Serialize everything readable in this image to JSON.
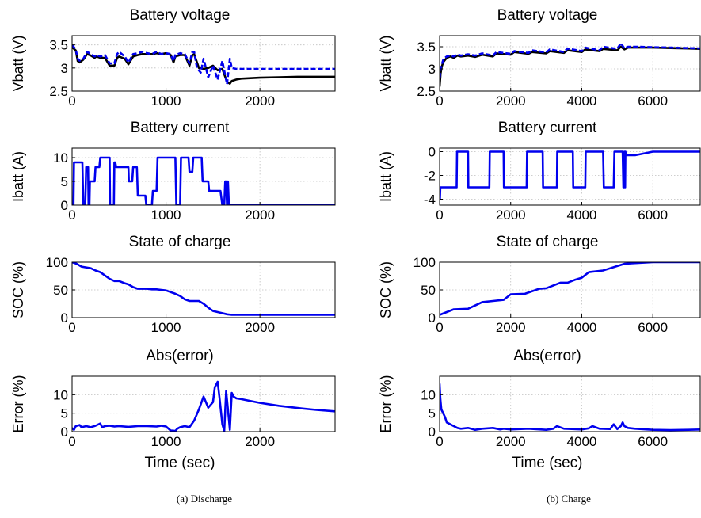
{
  "captions": {
    "left": "(a) Discharge",
    "right": "(b) Charge"
  },
  "chart_data": [
    {
      "id": "dis-voltage",
      "type": "line",
      "title": "Battery voltage",
      "xlabel": "",
      "ylabel": "Vbatt (V)",
      "xlim": [
        0,
        2800
      ],
      "ylim": [
        2.5,
        3.7
      ],
      "xticks": [
        0,
        1000,
        2000
      ],
      "yticks": [
        2.5,
        3,
        3.5
      ],
      "grid": true,
      "series": [
        {
          "color": "#000000",
          "dash": false,
          "x": [
            0,
            40,
            60,
            80,
            120,
            160,
            200,
            240,
            260,
            300,
            350,
            400,
            450,
            480,
            500,
            560,
            600,
            650,
            700,
            750,
            800,
            850,
            900,
            950,
            1000,
            1050,
            1080,
            1100,
            1150,
            1200,
            1250,
            1280,
            1300,
            1350,
            1400,
            1450,
            1500,
            1550,
            1600,
            1650,
            1680,
            1700,
            1750,
            1800,
            2000,
            2200,
            2400,
            2600,
            2800
          ],
          "y": [
            3.45,
            3.38,
            3.15,
            3.12,
            3.18,
            3.3,
            3.27,
            3.22,
            3.25,
            3.22,
            3.22,
            3.05,
            3.05,
            3.22,
            3.25,
            3.2,
            3.08,
            3.25,
            3.28,
            3.3,
            3.3,
            3.3,
            3.32,
            3.3,
            3.32,
            3.28,
            3.12,
            3.25,
            3.28,
            3.28,
            3.05,
            3.28,
            3.3,
            3.0,
            2.98,
            3.0,
            3.05,
            2.95,
            2.98,
            2.7,
            2.66,
            2.72,
            2.75,
            2.77,
            2.79,
            2.8,
            2.81,
            2.81,
            2.81
          ]
        },
        {
          "color": "#0000ee",
          "dash": true,
          "x": [
            0,
            40,
            60,
            80,
            120,
            160,
            200,
            240,
            260,
            300,
            350,
            400,
            450,
            480,
            500,
            560,
            600,
            650,
            700,
            750,
            800,
            850,
            900,
            950,
            1000,
            1050,
            1080,
            1100,
            1150,
            1200,
            1250,
            1280,
            1300,
            1330,
            1370,
            1400,
            1450,
            1500,
            1550,
            1600,
            1650,
            1680,
            1700,
            1750,
            1800,
            2000,
            2200,
            2400,
            2600,
            2800
          ],
          "y": [
            3.5,
            3.4,
            3.2,
            3.16,
            3.2,
            3.35,
            3.3,
            3.25,
            3.28,
            3.25,
            3.28,
            3.1,
            3.1,
            3.3,
            3.35,
            3.25,
            3.12,
            3.3,
            3.32,
            3.35,
            3.32,
            3.3,
            3.35,
            3.3,
            3.32,
            3.3,
            3.15,
            3.28,
            3.32,
            3.3,
            3.1,
            3.35,
            3.35,
            3.0,
            2.9,
            3.2,
            2.8,
            3.05,
            2.75,
            3.15,
            2.65,
            3.2,
            3.0,
            2.98,
            2.98,
            2.98,
            2.98,
            2.98,
            2.98,
            2.98
          ]
        }
      ]
    },
    {
      "id": "dis-current",
      "type": "line",
      "title": "Battery current",
      "xlabel": "",
      "ylabel": "Ibatt (A)",
      "xlim": [
        0,
        2800
      ],
      "ylim": [
        0,
        12
      ],
      "xticks": [
        0,
        1000,
        2000
      ],
      "yticks": [
        0,
        5,
        10
      ],
      "grid": true,
      "series": [
        {
          "color": "#0000ee",
          "dash": false,
          "x": [
            0,
            15,
            20,
            110,
            120,
            140,
            150,
            170,
            175,
            185,
            190,
            240,
            250,
            290,
            300,
            310,
            320,
            400,
            405,
            445,
            450,
            460,
            470,
            600,
            605,
            640,
            650,
            690,
            700,
            780,
            790,
            850,
            860,
            900,
            910,
            960,
            970,
            1100,
            1110,
            1150,
            1160,
            1240,
            1250,
            1280,
            1290,
            1380,
            1390,
            1450,
            1460,
            1580,
            1600,
            1620,
            1630,
            1640,
            1650,
            1660,
            1670,
            1700,
            1800,
            2800
          ],
          "y": [
            0,
            0,
            9,
            9,
            0,
            0,
            8,
            8,
            0,
            0,
            5,
            5,
            8,
            8,
            10,
            10,
            10,
            10,
            0,
            0,
            9,
            9,
            8,
            8,
            5,
            5,
            8,
            8,
            2,
            2,
            0,
            0,
            3,
            3,
            10,
            10,
            10,
            10,
            0,
            0,
            10,
            10,
            7,
            7,
            10,
            10,
            5,
            5,
            3,
            3,
            0,
            0,
            5,
            5,
            0,
            5,
            0,
            0,
            0,
            0
          ]
        }
      ]
    },
    {
      "id": "dis-soc",
      "type": "line",
      "title": "State of charge",
      "xlabel": "",
      "ylabel": "SOC (%)",
      "xlim": [
        0,
        2800
      ],
      "ylim": [
        0,
        100
      ],
      "xticks": [
        0,
        1000,
        2000
      ],
      "yticks": [
        0,
        50,
        100
      ],
      "grid": true,
      "series": [
        {
          "color": "#0000ee",
          "dash": false,
          "x": [
            0,
            50,
            100,
            200,
            250,
            300,
            350,
            400,
            450,
            500,
            560,
            600,
            650,
            700,
            750,
            800,
            850,
            900,
            950,
            1000,
            1050,
            1100,
            1150,
            1200,
            1250,
            1300,
            1350,
            1400,
            1450,
            1500,
            1550,
            1600,
            1650,
            1700,
            2000,
            2400,
            2800
          ],
          "y": [
            100,
            97,
            92,
            89,
            85,
            82,
            76,
            70,
            66,
            66,
            62,
            60,
            55,
            52,
            52,
            52,
            51,
            51,
            50,
            49,
            46,
            43,
            39,
            33,
            30,
            30,
            30,
            25,
            18,
            12,
            10,
            8,
            6,
            5,
            5,
            5,
            5
          ]
        }
      ]
    },
    {
      "id": "dis-error",
      "type": "line",
      "title": "Abs(error)",
      "xlabel": "Time (sec)",
      "ylabel": "Error (%)",
      "xlim": [
        0,
        2800
      ],
      "ylim": [
        0,
        15
      ],
      "xticks": [
        0,
        1000,
        2000
      ],
      "yticks": [
        0,
        5,
        10
      ],
      "grid": true,
      "series": [
        {
          "color": "#0000ee",
          "dash": false,
          "x": [
            0,
            20,
            40,
            80,
            100,
            150,
            200,
            250,
            300,
            320,
            350,
            400,
            450,
            500,
            600,
            700,
            800,
            900,
            950,
            1000,
            1050,
            1100,
            1120,
            1150,
            1200,
            1250,
            1300,
            1350,
            1400,
            1450,
            1500,
            1520,
            1550,
            1570,
            1600,
            1620,
            1640,
            1660,
            1680,
            1700,
            1720,
            1750,
            1800,
            2000,
            2200,
            2400,
            2600,
            2800
          ],
          "y": [
            1,
            0.5,
            1.5,
            1.8,
            1.2,
            1.5,
            1.2,
            1.6,
            2.2,
            1.2,
            1.5,
            1.6,
            1.4,
            1.5,
            1.3,
            1.5,
            1.5,
            1.4,
            1.6,
            1.4,
            0.3,
            0.2,
            0.8,
            1.2,
            1.5,
            1.2,
            3,
            6,
            9.5,
            6.5,
            8,
            12,
            13.5,
            9,
            2,
            0.2,
            11,
            6,
            0.5,
            10.5,
            9.5,
            9,
            8.8,
            7.8,
            7,
            6.4,
            5.9,
            5.5
          ]
        }
      ]
    },
    {
      "id": "chg-voltage",
      "type": "line",
      "title": "Battery voltage",
      "xlabel": "",
      "ylabel": "Vbatt (V)",
      "xlim": [
        0,
        7400
      ],
      "ylim": [
        2.5,
        3.75
      ],
      "xticks": [
        0,
        2000,
        4000,
        6000
      ],
      "yticks": [
        2.5,
        3,
        3.5
      ],
      "grid": true,
      "series": [
        {
          "color": "#000000",
          "dash": false,
          "x": [
            0,
            30,
            60,
            100,
            150,
            200,
            300,
            400,
            500,
            600,
            800,
            1000,
            1200,
            1500,
            1600,
            2000,
            2100,
            2500,
            2600,
            3000,
            3100,
            3500,
            3600,
            4000,
            4100,
            4500,
            4600,
            5000,
            5100,
            5200,
            5300,
            5400,
            5600,
            6000,
            6500,
            7000,
            7400
          ],
          "y": [
            2.6,
            2.9,
            3.05,
            3.15,
            3.2,
            3.25,
            3.28,
            3.25,
            3.3,
            3.28,
            3.3,
            3.27,
            3.32,
            3.28,
            3.35,
            3.32,
            3.38,
            3.34,
            3.38,
            3.35,
            3.4,
            3.36,
            3.42,
            3.38,
            3.44,
            3.4,
            3.45,
            3.42,
            3.5,
            3.44,
            3.48,
            3.48,
            3.48,
            3.48,
            3.47,
            3.46,
            3.45
          ]
        },
        {
          "color": "#0000ee",
          "dash": true,
          "x": [
            0,
            30,
            60,
            100,
            150,
            200,
            300,
            400,
            500,
            600,
            800,
            1000,
            1200,
            1500,
            1600,
            2000,
            2100,
            2500,
            2600,
            3000,
            3100,
            3500,
            3600,
            4000,
            4100,
            4500,
            4600,
            5000,
            5100,
            5200,
            5300,
            5400,
            5600,
            6000,
            6500,
            7000,
            7400
          ],
          "y": [
            2.8,
            3.0,
            3.1,
            3.2,
            3.25,
            3.28,
            3.3,
            3.28,
            3.33,
            3.3,
            3.33,
            3.3,
            3.35,
            3.3,
            3.38,
            3.34,
            3.4,
            3.36,
            3.42,
            3.37,
            3.44,
            3.38,
            3.46,
            3.4,
            3.48,
            3.42,
            3.5,
            3.45,
            3.58,
            3.46,
            3.5,
            3.5,
            3.5,
            3.49,
            3.48,
            3.47,
            3.46
          ]
        }
      ]
    },
    {
      "id": "chg-current",
      "type": "line",
      "title": "Battery current",
      "xlabel": "",
      "ylabel": "Ibatt (A)",
      "xlim": [
        0,
        7400
      ],
      "ylim": [
        -4.5,
        0.3
      ],
      "xticks": [
        0,
        2000,
        4000,
        6000
      ],
      "yticks": [
        -4,
        -2,
        0
      ],
      "grid": true,
      "series": [
        {
          "color": "#0000ee",
          "dash": false,
          "x": [
            0,
            10,
            20,
            480,
            490,
            800,
            810,
            1400,
            1410,
            1800,
            1810,
            2450,
            2460,
            2900,
            2910,
            3300,
            3310,
            3750,
            3760,
            4100,
            4110,
            4600,
            4620,
            4900,
            4920,
            5150,
            5170,
            5180,
            5200,
            5220,
            5230,
            5250,
            5500,
            6000,
            7400
          ],
          "y": [
            -4,
            -4,
            -3,
            -3,
            0,
            0,
            -3,
            -3,
            0,
            0,
            -3,
            -3,
            0,
            0,
            -3,
            -3,
            0,
            0,
            -3,
            -3,
            0,
            0,
            -3,
            -3,
            0,
            0,
            -3,
            -3,
            0,
            -3,
            0,
            -0.3,
            -0.3,
            0,
            0
          ]
        }
      ]
    },
    {
      "id": "chg-soc",
      "type": "line",
      "title": "State of charge",
      "xlabel": "",
      "ylabel": "SOC (%)",
      "xlim": [
        0,
        7400
      ],
      "ylim": [
        0,
        100
      ],
      "xticks": [
        0,
        2000,
        4000,
        6000
      ],
      "yticks": [
        0,
        50,
        100
      ],
      "grid": true,
      "series": [
        {
          "color": "#0000ee",
          "dash": false,
          "x": [
            0,
            200,
            400,
            800,
            1200,
            1500,
            1800,
            2000,
            2400,
            2800,
            3000,
            3400,
            3600,
            3800,
            4000,
            4200,
            4600,
            5000,
            5200,
            5400,
            6000,
            7400
          ],
          "y": [
            5,
            10,
            15,
            16,
            28,
            30,
            32,
            42,
            43,
            52,
            53,
            63,
            63,
            68,
            72,
            82,
            85,
            93,
            97,
            98,
            100,
            100
          ]
        }
      ]
    },
    {
      "id": "chg-error",
      "type": "line",
      "title": "Abs(error)",
      "xlabel": "Time (sec)",
      "ylabel": "Error (%)",
      "xlim": [
        0,
        7400
      ],
      "ylim": [
        0,
        15
      ],
      "xticks": [
        0,
        2000,
        4000,
        6000
      ],
      "yticks": [
        0,
        5,
        10
      ],
      "grid": true,
      "series": [
        {
          "color": "#0000ee",
          "dash": false,
          "x": [
            0,
            20,
            50,
            100,
            150,
            200,
            300,
            400,
            500,
            600,
            800,
            1000,
            1200,
            1500,
            1700,
            1800,
            2000,
            2500,
            3000,
            3200,
            3300,
            3500,
            4000,
            4200,
            4300,
            4500,
            4800,
            4900,
            5000,
            5100,
            5150,
            5200,
            5300,
            5500,
            6000,
            6500,
            7000,
            7400
          ],
          "y": [
            13,
            9,
            6,
            5,
            4,
            2.5,
            2,
            1.5,
            1,
            0.8,
            1,
            0.5,
            0.8,
            1,
            0.6,
            0.8,
            0.6,
            0.8,
            0.5,
            0.8,
            1.5,
            0.8,
            0.6,
            0.9,
            1.5,
            0.8,
            0.7,
            2,
            0.7,
            1.5,
            2.5,
            1.5,
            1,
            0.8,
            0.5,
            0.4,
            0.5,
            0.6
          ]
        }
      ]
    }
  ]
}
